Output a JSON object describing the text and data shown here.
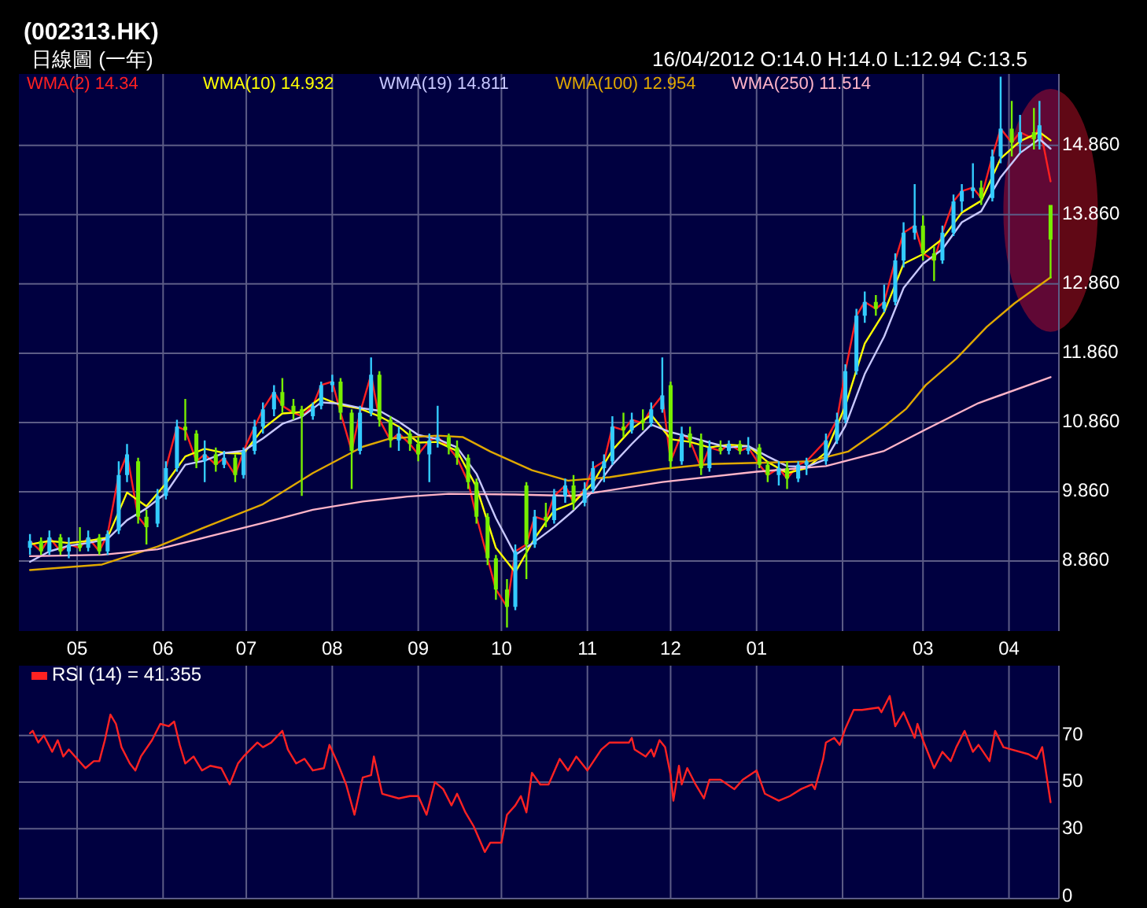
{
  "chart_data": [
    {
      "type": "candlestick",
      "title": "(002313.HK)",
      "subtitle": "日線圖 (一年)",
      "annotations": [
        "16/04/2012 O:14.0 H:14.0 L:12.94 C:13.5"
      ],
      "x": [
        "2011-04-14",
        "2011-04-18",
        "2011-04-21",
        "2011-04-25",
        "2011-04-28",
        "2011-05-02",
        "2011-05-05",
        "2011-05-09",
        "2011-05-12",
        "2011-05-16",
        "2011-05-19",
        "2011-05-23",
        "2011-05-26",
        "2011-05-30",
        "2011-06-02",
        "2011-06-06",
        "2011-06-09",
        "2011-06-13",
        "2011-06-16",
        "2011-06-20",
        "2011-06-23",
        "2011-06-27",
        "2011-06-30",
        "2011-07-04",
        "2011-07-07",
        "2011-07-11",
        "2011-07-14",
        "2011-07-18",
        "2011-07-21",
        "2011-07-25",
        "2011-07-28",
        "2011-08-01",
        "2011-08-04",
        "2011-08-08",
        "2011-08-11",
        "2011-08-15",
        "2011-08-18",
        "2011-08-22",
        "2011-08-25",
        "2011-08-29",
        "2011-09-01",
        "2011-09-05",
        "2011-09-08",
        "2011-09-12",
        "2011-09-15",
        "2011-09-19",
        "2011-09-22",
        "2011-09-26",
        "2011-09-29",
        "2011-10-03",
        "2011-10-06",
        "2011-10-10",
        "2011-10-13",
        "2011-10-17",
        "2011-10-20",
        "2011-10-24",
        "2011-10-27",
        "2011-10-31",
        "2011-11-03",
        "2011-11-07",
        "2011-11-10",
        "2011-11-14",
        "2011-11-17",
        "2011-11-21",
        "2011-11-24",
        "2011-11-28",
        "2011-12-01",
        "2011-12-05",
        "2011-12-08",
        "2011-12-12",
        "2011-12-15",
        "2011-12-19",
        "2011-12-22",
        "2011-12-26",
        "2011-12-29",
        "2012-01-02",
        "2012-01-05",
        "2012-01-09",
        "2012-01-12",
        "2012-01-16",
        "2012-01-19",
        "2012-01-26",
        "2012-01-30",
        "2012-02-02",
        "2012-02-06",
        "2012-02-09",
        "2012-02-13",
        "2012-02-16",
        "2012-02-20",
        "2012-02-23",
        "2012-02-27",
        "2012-03-01",
        "2012-03-05",
        "2012-03-08",
        "2012-03-12",
        "2012-03-15",
        "2012-03-19",
        "2012-03-22",
        "2012-03-26",
        "2012-03-29",
        "2012-04-02",
        "2012-04-05",
        "2012-04-10",
        "2012-04-12",
        "2012-04-16"
      ],
      "ohlc": [
        [
          9.05,
          9.25,
          8.95,
          9.15
        ],
        [
          9.15,
          9.2,
          8.95,
          9.0
        ],
        [
          9.0,
          9.3,
          8.95,
          9.2
        ],
        [
          9.2,
          9.25,
          8.95,
          9.0
        ],
        [
          9.0,
          9.2,
          8.9,
          9.1
        ],
        [
          9.1,
          9.35,
          9.0,
          9.05
        ],
        [
          9.05,
          9.3,
          9.0,
          9.2
        ],
        [
          9.2,
          9.25,
          8.95,
          9.0
        ],
        [
          9.0,
          9.3,
          8.95,
          9.25
        ],
        [
          9.3,
          10.3,
          9.25,
          10.1
        ],
        [
          10.1,
          10.55,
          10.0,
          10.4
        ],
        [
          10.3,
          10.35,
          9.4,
          9.5
        ],
        [
          9.5,
          9.6,
          9.1,
          9.35
        ],
        [
          9.4,
          9.9,
          9.35,
          9.8
        ],
        [
          9.8,
          10.3,
          9.75,
          10.2
        ],
        [
          10.2,
          10.9,
          10.15,
          10.8
        ],
        [
          10.8,
          11.2,
          10.6,
          10.75
        ],
        [
          10.7,
          10.75,
          10.2,
          10.3
        ],
        [
          10.3,
          10.6,
          10.0,
          10.4
        ],
        [
          10.4,
          10.5,
          10.15,
          10.25
        ],
        [
          10.25,
          10.45,
          10.2,
          10.35
        ],
        [
          10.35,
          10.4,
          10.0,
          10.1
        ],
        [
          10.1,
          10.5,
          10.05,
          10.45
        ],
        [
          10.45,
          10.9,
          10.4,
          10.8
        ],
        [
          10.8,
          11.15,
          10.7,
          11.05
        ],
        [
          11.05,
          11.4,
          10.95,
          11.3
        ],
        [
          11.3,
          11.5,
          11.0,
          11.1
        ],
        [
          11.1,
          11.2,
          10.9,
          11.0
        ],
        [
          11.05,
          11.1,
          9.8,
          10.95
        ],
        [
          10.95,
          11.15,
          10.9,
          11.1
        ],
        [
          11.1,
          11.45,
          11.05,
          11.4
        ],
        [
          11.4,
          11.55,
          11.3,
          11.45
        ],
        [
          11.45,
          11.5,
          10.9,
          11.0
        ],
        [
          11.0,
          11.05,
          9.9,
          10.45
        ],
        [
          10.45,
          11.1,
          10.4,
          11.0
        ],
        [
          11.0,
          11.8,
          10.95,
          11.55
        ],
        [
          11.55,
          11.6,
          10.8,
          10.9
        ],
        [
          10.9,
          10.95,
          10.5,
          10.6
        ],
        [
          10.6,
          10.8,
          10.45,
          10.7
        ],
        [
          10.7,
          10.75,
          10.45,
          10.55
        ],
        [
          10.55,
          10.65,
          10.3,
          10.4
        ],
        [
          10.4,
          10.7,
          10.0,
          10.6
        ],
        [
          10.6,
          11.1,
          10.5,
          10.65
        ],
        [
          10.65,
          10.7,
          10.4,
          10.5
        ],
        [
          10.5,
          10.6,
          10.25,
          10.35
        ],
        [
          10.35,
          10.4,
          9.9,
          10.0
        ],
        [
          10.0,
          10.05,
          9.4,
          9.5
        ],
        [
          9.5,
          9.55,
          8.8,
          8.9
        ],
        [
          8.9,
          8.95,
          8.3,
          8.45
        ],
        [
          8.45,
          8.6,
          7.9,
          8.2
        ],
        [
          8.2,
          9.1,
          8.15,
          9.0
        ],
        [
          9.95,
          10.0,
          8.6,
          9.1
        ],
        [
          9.1,
          9.6,
          9.05,
          9.5
        ],
        [
          9.5,
          9.7,
          9.35,
          9.45
        ],
        [
          9.45,
          9.9,
          9.4,
          9.8
        ],
        [
          9.8,
          10.05,
          9.7,
          9.95
        ],
        [
          9.95,
          10.1,
          9.6,
          9.7
        ],
        [
          9.7,
          10.0,
          9.65,
          9.9
        ],
        [
          9.9,
          10.3,
          9.85,
          10.2
        ],
        [
          10.2,
          10.4,
          10.0,
          10.3
        ],
        [
          10.3,
          10.95,
          10.25,
          10.8
        ],
        [
          10.8,
          11.0,
          10.65,
          10.75
        ],
        [
          10.75,
          11.0,
          10.7,
          10.9
        ],
        [
          10.9,
          11.05,
          10.75,
          10.85
        ],
        [
          10.85,
          11.15,
          10.8,
          11.05
        ],
        [
          11.05,
          11.8,
          11.0,
          11.25
        ],
        [
          11.4,
          11.45,
          10.2,
          10.3
        ],
        [
          10.3,
          10.8,
          10.25,
          10.7
        ],
        [
          10.7,
          10.8,
          10.5,
          10.6
        ],
        [
          10.6,
          10.7,
          10.1,
          10.2
        ],
        [
          10.2,
          10.6,
          10.15,
          10.5
        ],
        [
          10.5,
          10.6,
          10.4,
          10.45
        ],
        [
          10.45,
          10.6,
          10.4,
          10.55
        ],
        [
          10.55,
          10.6,
          10.4,
          10.45
        ],
        [
          10.45,
          10.65,
          10.4,
          10.5
        ],
        [
          10.5,
          10.55,
          10.2,
          10.25
        ],
        [
          10.25,
          10.3,
          10.0,
          10.1
        ],
        [
          10.1,
          10.3,
          9.95,
          10.2
        ],
        [
          10.2,
          10.3,
          9.9,
          10.05
        ],
        [
          10.05,
          10.3,
          10.0,
          10.25
        ],
        [
          10.25,
          10.35,
          10.1,
          10.3
        ],
        [
          10.3,
          10.7,
          10.25,
          10.6
        ],
        [
          10.6,
          11.0,
          10.55,
          10.9
        ],
        [
          10.9,
          11.7,
          10.85,
          11.6
        ],
        [
          11.6,
          12.5,
          11.55,
          12.4
        ],
        [
          12.4,
          12.75,
          12.3,
          12.6
        ],
        [
          12.6,
          12.7,
          12.4,
          12.5
        ],
        [
          12.5,
          12.85,
          12.45,
          12.6
        ],
        [
          12.6,
          13.3,
          12.55,
          13.2
        ],
        [
          13.2,
          13.75,
          13.1,
          13.6
        ],
        [
          13.6,
          14.3,
          13.5,
          13.7
        ],
        [
          13.7,
          13.85,
          13.2,
          13.3
        ],
        [
          13.3,
          13.4,
          12.9,
          13.2
        ],
        [
          13.2,
          13.7,
          13.15,
          13.6
        ],
        [
          13.6,
          14.15,
          13.55,
          14.05
        ],
        [
          14.05,
          14.3,
          13.9,
          14.2
        ],
        [
          14.2,
          14.6,
          14.1,
          14.25
        ],
        [
          14.25,
          14.35,
          14.0,
          14.1
        ],
        [
          14.1,
          14.8,
          14.05,
          14.7
        ],
        [
          14.7,
          15.85,
          14.6,
          15.1
        ],
        [
          15.1,
          15.5,
          14.7,
          14.9
        ],
        [
          14.9,
          15.3,
          14.75,
          15.05
        ],
        [
          15.05,
          15.4,
          14.8,
          14.95
        ],
        [
          14.95,
          15.5,
          14.8,
          15.15
        ],
        [
          14.0,
          14.0,
          12.94,
          13.5
        ]
      ],
      "colors": [
        "#33ccff",
        "#77ee00",
        "#33ccff",
        "#77ee00",
        "#33ccff",
        "#77ee00",
        "#33ccff",
        "#77ee00",
        "#33ccff",
        "#33ccff",
        "#33ccff",
        "#77ee00",
        "#77ee00",
        "#33ccff",
        "#33ccff",
        "#33ccff",
        "#77ee00",
        "#77ee00",
        "#33ccff",
        "#77ee00",
        "#33ccff",
        "#77ee00",
        "#33ccff",
        "#33ccff",
        "#33ccff",
        "#33ccff",
        "#77ee00",
        "#77ee00",
        "#77ee00",
        "#33ccff",
        "#33ccff",
        "#33ccff",
        "#77ee00",
        "#77ee00",
        "#33ccff",
        "#33ccff",
        "#77ee00",
        "#77ee00",
        "#33ccff",
        "#77ee00",
        "#77ee00",
        "#33ccff",
        "#33ccff",
        "#77ee00",
        "#77ee00",
        "#77ee00",
        "#77ee00",
        "#77ee00",
        "#77ee00",
        "#77ee00",
        "#33ccff",
        "#77ee00",
        "#33ccff",
        "#77ee00",
        "#33ccff",
        "#33ccff",
        "#77ee00",
        "#33ccff",
        "#33ccff",
        "#33ccff",
        "#33ccff",
        "#77ee00",
        "#33ccff",
        "#77ee00",
        "#33ccff",
        "#33ccff",
        "#77ee00",
        "#33ccff",
        "#77ee00",
        "#77ee00",
        "#33ccff",
        "#77ee00",
        "#33ccff",
        "#77ee00",
        "#33ccff",
        "#77ee00",
        "#77ee00",
        "#33ccff",
        "#77ee00",
        "#33ccff",
        "#33ccff",
        "#33ccff",
        "#33ccff",
        "#33ccff",
        "#33ccff",
        "#33ccff",
        "#77ee00",
        "#33ccff",
        "#33ccff",
        "#33ccff",
        "#33ccff",
        "#77ee00",
        "#77ee00",
        "#33ccff",
        "#33ccff",
        "#33ccff",
        "#33ccff",
        "#77ee00",
        "#33ccff",
        "#33ccff",
        "#77ee00",
        "#33ccff",
        "#77ee00",
        "#33ccff",
        "#77ee00"
      ],
      "series": [
        {
          "type": "line",
          "name": "WMA(2) 14.34",
          "color": "#ff2020",
          "values": [
            9.15,
            9.0,
            9.2,
            9.0,
            9.1,
            9.05,
            9.2,
            9.0,
            9.25,
            10.1,
            10.4,
            9.5,
            9.35,
            null,
            10.2,
            10.8,
            10.75,
            10.3,
            10.4,
            10.25,
            10.35,
            10.1,
            10.45,
            10.8,
            11.05,
            11.3,
            11.1,
            11.0,
            10.95,
            11.1,
            11.4,
            11.45,
            11.0,
            10.45,
            11.0,
            11.55,
            10.9,
            10.6,
            10.7,
            10.55,
            10.4,
            10.6,
            10.65,
            10.5,
            10.35,
            10.0,
            9.5,
            8.9,
            8.45,
            8.2,
            9.0,
            9.1,
            9.5,
            9.45,
            9.8,
            9.95,
            9.7,
            9.9,
            10.2,
            10.3,
            10.8,
            10.75,
            10.9,
            10.85,
            11.05,
            11.25,
            10.3,
            10.7,
            10.6,
            10.2,
            10.5,
            10.45,
            10.55,
            10.45,
            10.5,
            10.25,
            10.1,
            10.2,
            10.05,
            10.25,
            10.3,
            10.6,
            10.9,
            11.6,
            12.4,
            12.6,
            12.5,
            12.6,
            13.2,
            13.6,
            13.7,
            13.3,
            13.2,
            13.6,
            14.05,
            14.2,
            14.25,
            14.1,
            14.7,
            15.1,
            14.9,
            15.05,
            14.95,
            15.15,
            14.34
          ]
        },
        {
          "type": "line",
          "name": "WMA(10) 14.932",
          "color": "#ffff00",
          "x": [
            "2011-04-14",
            "2011-04-21",
            "2011-04-28",
            "2011-05-05",
            "2011-05-12",
            "2011-05-19",
            "2011-05-26",
            "2011-06-02",
            "2011-06-09",
            "2011-06-16",
            "2011-06-23",
            "2011-06-30",
            "2011-07-07",
            "2011-07-14",
            "2011-07-21",
            "2011-07-28",
            "2011-08-04",
            "2011-08-11",
            "2011-08-18",
            "2011-08-25",
            "2011-09-01",
            "2011-09-08",
            "2011-09-15",
            "2011-09-22",
            "2011-09-29",
            "2011-10-06",
            "2011-10-13",
            "2011-10-20",
            "2011-10-27",
            "2011-11-03",
            "2011-11-10",
            "2011-11-17",
            "2011-11-24",
            "2011-12-01",
            "2011-12-08",
            "2011-12-15",
            "2011-12-22",
            "2011-12-29",
            "2012-01-05",
            "2012-01-12",
            "2012-01-19",
            "2012-01-26",
            "2012-02-02",
            "2012-02-09",
            "2012-02-16",
            "2012-02-23",
            "2012-03-01",
            "2012-03-08",
            "2012-03-15",
            "2012-03-22",
            "2012-03-29",
            "2012-04-05",
            "2012-04-12",
            "2012-04-16"
          ],
          "values": [
            9.1,
            9.15,
            9.12,
            9.15,
            9.2,
            9.85,
            9.65,
            9.98,
            10.37,
            10.48,
            10.42,
            10.41,
            10.77,
            10.99,
            11.01,
            11.22,
            11.11,
            11.06,
            10.95,
            10.8,
            10.57,
            10.58,
            10.45,
            9.93,
            9.05,
            8.7,
            9.19,
            9.59,
            9.7,
            9.99,
            10.46,
            10.77,
            10.97,
            10.62,
            10.58,
            10.5,
            10.54,
            10.52,
            10.29,
            10.13,
            10.2,
            10.43,
            11.1,
            12.0,
            12.45,
            13.15,
            13.29,
            13.51,
            13.89,
            14.06,
            14.67,
            14.92,
            15.05,
            14.932
          ]
        },
        {
          "type": "line",
          "name": "WMA(19) 14.811",
          "color": "#c8c8ff",
          "x": [
            "2011-04-14",
            "2011-04-21",
            "2011-04-28",
            "2011-05-05",
            "2011-05-12",
            "2011-05-19",
            "2011-05-26",
            "2011-06-02",
            "2011-06-09",
            "2011-06-16",
            "2011-06-23",
            "2011-06-30",
            "2011-07-07",
            "2011-07-14",
            "2011-07-21",
            "2011-07-28",
            "2011-08-04",
            "2011-08-11",
            "2011-08-18",
            "2011-08-25",
            "2011-09-01",
            "2011-09-08",
            "2011-09-15",
            "2011-09-22",
            "2011-09-29",
            "2011-10-06",
            "2011-10-13",
            "2011-10-20",
            "2011-10-27",
            "2011-11-03",
            "2011-11-10",
            "2011-11-17",
            "2011-11-24",
            "2011-12-01",
            "2011-12-08",
            "2011-12-15",
            "2011-12-22",
            "2011-12-29",
            "2012-01-05",
            "2012-01-12",
            "2012-01-19",
            "2012-01-26",
            "2012-02-02",
            "2012-02-09",
            "2012-02-16",
            "2012-02-23",
            "2012-03-01",
            "2012-03-08",
            "2012-03-15",
            "2012-03-22",
            "2012-03-29",
            "2012-04-05",
            "2012-04-12",
            "2012-04-16"
          ],
          "values": [
            8.85,
            9.0,
            9.08,
            9.12,
            9.18,
            9.45,
            9.62,
            9.84,
            10.25,
            10.31,
            10.42,
            10.45,
            10.63,
            10.84,
            10.94,
            11.15,
            11.13,
            11.07,
            11.03,
            10.87,
            10.68,
            10.62,
            10.5,
            10.12,
            9.48,
            8.95,
            9.14,
            9.35,
            9.59,
            9.87,
            10.25,
            10.55,
            10.83,
            10.72,
            10.65,
            10.57,
            10.5,
            10.52,
            10.37,
            10.23,
            10.22,
            10.33,
            10.81,
            11.56,
            12.1,
            12.8,
            13.15,
            13.36,
            13.75,
            13.91,
            14.4,
            14.75,
            14.95,
            14.811
          ]
        },
        {
          "type": "line",
          "name": "WMA(100) 12.954",
          "color": "#e0a800",
          "x": [
            "2011-04-14",
            "2011-05-10",
            "2011-05-30",
            "2011-06-18",
            "2011-07-07",
            "2011-07-25",
            "2011-08-12",
            "2011-08-22",
            "2011-09-08",
            "2011-09-17",
            "2011-09-27",
            "2011-10-12",
            "2011-10-25",
            "2011-11-09",
            "2011-11-28",
            "2011-12-15",
            "2012-01-04",
            "2012-01-20",
            "2012-02-03",
            "2012-02-16",
            "2012-02-24",
            "2012-03-02",
            "2012-03-13",
            "2012-03-24",
            "2012-04-03",
            "2012-04-16"
          ],
          "values": [
            8.73,
            8.81,
            9.07,
            9.38,
            9.68,
            10.13,
            10.51,
            10.63,
            10.67,
            10.65,
            10.44,
            10.17,
            10.02,
            10.07,
            10.19,
            10.26,
            10.28,
            10.3,
            10.44,
            10.8,
            11.06,
            11.4,
            11.78,
            12.24,
            12.58,
            12.954
          ]
        },
        {
          "type": "line",
          "name": "WMA(250) 11.514",
          "color": "#ffb4c8",
          "x": [
            "2011-04-14",
            "2011-05-10",
            "2011-05-30",
            "2011-06-18",
            "2011-07-07",
            "2011-07-25",
            "2011-08-12",
            "2011-08-28",
            "2011-09-12",
            "2011-10-06",
            "2011-10-27",
            "2011-11-28",
            "2012-01-01",
            "2012-01-26",
            "2012-02-16",
            "2012-03-02",
            "2012-03-21",
            "2012-04-16"
          ],
          "values": [
            8.93,
            8.95,
            9.03,
            9.22,
            9.41,
            9.6,
            9.72,
            9.79,
            9.83,
            9.82,
            9.8,
            10.0,
            10.15,
            10.23,
            10.45,
            10.76,
            11.14,
            11.514
          ]
        }
      ],
      "xlim": [
        "2011-04-10",
        "2012-04-19"
      ],
      "xticks": [
        {
          "value": "2011-05-01",
          "label": "05"
        },
        {
          "value": "2011-06-01",
          "label": "06"
        },
        {
          "value": "2011-07-01",
          "label": "07"
        },
        {
          "value": "2011-08-01",
          "label": "08"
        },
        {
          "value": "2011-09-01",
          "label": "09"
        },
        {
          "value": "2011-10-01",
          "label": "10"
        },
        {
          "value": "2011-11-01",
          "label": "11"
        },
        {
          "value": "2011-12-01",
          "label": "12"
        },
        {
          "value": "2012-01-01",
          "label": "01"
        },
        {
          "value": "2012-02-01",
          "label": null
        },
        {
          "value": "2012-03-01",
          "label": "03"
        },
        {
          "value": "2012-04-01",
          "label": "04"
        }
      ],
      "ylim": [
        7.85,
        15.89
      ],
      "yticks": [
        {
          "value": 8.86,
          "label": "8.860"
        },
        {
          "value": 9.86,
          "label": "9.860"
        },
        {
          "value": 10.86,
          "label": "10.860"
        },
        {
          "value": 11.86,
          "label": "11.860"
        },
        {
          "value": 12.86,
          "label": "12.860"
        },
        {
          "value": 13.86,
          "label": "13.860"
        },
        {
          "value": 14.86,
          "label": "14.860"
        }
      ],
      "grid": true,
      "legend": "top left"
    },
    {
      "type": "line",
      "series": [
        {
          "name": "RSI (14) = 41.355",
          "color": "#ff2222",
          "x": [
            "2011-04-14",
            "2011-04-15",
            "2011-04-17",
            "2011-04-19",
            "2011-04-22",
            "2011-04-24",
            "2011-04-26",
            "2011-04-28",
            "2011-05-01",
            "2011-05-04",
            "2011-05-07",
            "2011-05-09",
            "2011-05-11",
            "2011-05-13",
            "2011-05-15",
            "2011-05-17",
            "2011-05-20",
            "2011-05-22",
            "2011-05-24",
            "2011-05-28",
            "2011-05-31",
            "2011-06-03",
            "2011-06-05",
            "2011-06-07",
            "2011-06-09",
            "2011-06-12",
            "2011-06-15",
            "2011-06-18",
            "2011-06-22",
            "2011-06-25",
            "2011-06-28",
            "2011-06-30",
            "2011-07-05",
            "2011-07-07",
            "2011-07-10",
            "2011-07-14",
            "2011-07-16",
            "2011-07-19",
            "2011-07-22",
            "2011-07-25",
            "2011-07-29",
            "2011-07-31",
            "2011-08-03",
            "2011-08-06",
            "2011-08-09",
            "2011-08-12",
            "2011-08-15",
            "2011-08-16",
            "2011-08-19",
            "2011-08-25",
            "2011-08-29",
            "2011-09-01",
            "2011-09-04",
            "2011-09-07",
            "2011-09-10",
            "2011-09-13",
            "2011-09-15",
            "2011-09-18",
            "2011-09-21",
            "2011-09-25",
            "2011-09-27",
            "2011-10-01",
            "2011-10-03",
            "2011-10-06",
            "2011-10-08",
            "2011-10-10",
            "2011-10-12",
            "2011-10-15",
            "2011-10-18",
            "2011-10-22",
            "2011-10-25",
            "2011-10-28",
            "2011-11-01",
            "2011-11-06",
            "2011-11-09",
            "2011-11-16",
            "2011-11-17",
            "2011-11-18",
            "2011-11-22",
            "2011-11-24",
            "2011-11-25",
            "2011-11-27",
            "2011-11-29",
            "2011-12-01",
            "2011-12-02",
            "2011-12-04",
            "2011-12-05",
            "2011-12-07",
            "2011-12-10",
            "2011-12-13",
            "2011-12-15",
            "2011-12-19",
            "2011-12-24",
            "2011-12-27",
            "2012-01-01",
            "2012-01-04",
            "2012-01-09",
            "2012-01-13",
            "2012-01-17",
            "2012-01-21",
            "2012-01-22",
            "2012-01-25",
            "2012-01-26",
            "2012-01-29",
            "2012-01-31",
            "2012-02-02",
            "2012-02-05",
            "2012-02-08",
            "2012-02-14",
            "2012-02-15",
            "2012-02-18",
            "2012-02-20",
            "2012-02-23",
            "2012-02-27",
            "2012-02-28",
            "2012-03-01",
            "2012-03-05",
            "2012-03-08",
            "2012-03-11",
            "2012-03-13",
            "2012-03-16",
            "2012-03-19",
            "2012-03-21",
            "2012-03-25",
            "2012-03-27",
            "2012-03-30",
            "2012-04-02",
            "2012-04-08",
            "2012-04-11",
            "2012-04-13",
            "2012-04-16"
          ],
          "values": [
            71,
            72,
            67,
            70,
            63,
            68,
            61,
            64,
            60,
            56,
            59,
            59,
            68,
            79,
            75,
            65,
            58,
            55,
            61,
            68,
            75,
            74,
            76,
            66,
            58,
            61,
            55,
            57,
            56,
            49,
            58,
            61,
            67,
            65,
            67,
            72,
            64,
            58,
            60,
            55,
            56,
            66,
            58,
            49,
            36,
            52,
            53,
            61,
            45,
            43,
            44,
            44,
            36,
            50,
            47,
            40,
            45,
            37,
            31,
            20,
            24,
            24,
            36,
            40,
            44,
            37,
            54,
            49,
            49,
            60,
            55,
            61,
            55,
            64,
            67,
            67,
            69,
            64,
            61,
            64,
            61,
            68,
            65,
            53,
            42,
            57,
            49,
            56,
            49,
            43,
            51,
            51,
            47,
            51,
            55,
            45,
            42,
            44,
            47,
            49,
            47,
            60,
            67,
            69,
            66,
            73,
            81,
            81,
            82,
            80,
            87,
            74,
            80,
            69,
            75,
            68,
            56,
            63,
            59,
            65,
            72,
            63,
            66,
            59,
            72,
            65,
            64,
            62,
            60,
            65,
            41.355
          ]
        }
      ],
      "xlim": [
        "2011-04-10",
        "2012-04-19"
      ],
      "xticks": [
        {
          "value": "2011-05-01",
          "label": null
        },
        {
          "value": "2011-06-01",
          "label": null
        },
        {
          "value": "2011-07-01",
          "label": null
        },
        {
          "value": "2011-08-01",
          "label": null
        },
        {
          "value": "2011-09-01",
          "label": null
        },
        {
          "value": "2011-10-01",
          "label": null
        },
        {
          "value": "2011-11-01",
          "label": null
        },
        {
          "value": "2011-12-01",
          "label": null
        },
        {
          "value": "2012-01-01",
          "label": null
        },
        {
          "value": "2012-02-01",
          "label": null
        },
        {
          "value": "2012-03-01",
          "label": null
        },
        {
          "value": "2012-04-01",
          "label": null
        }
      ],
      "ylim": [
        0,
        100
      ],
      "yticks": [
        0,
        30,
        50,
        70
      ],
      "grid": true,
      "legend": "top left",
      "tick_labels": "y"
    }
  ]
}
